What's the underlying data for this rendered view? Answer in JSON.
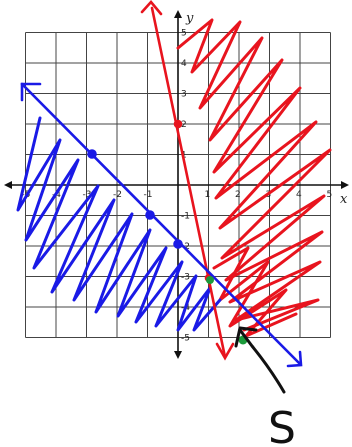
{
  "graph": {
    "axes": {
      "x_label": "x",
      "y_label": "y"
    },
    "x_ticks": [
      {
        "value": -5,
        "label": "-5"
      },
      {
        "value": -4,
        "label": "-4"
      },
      {
        "value": -3,
        "label": "-3"
      },
      {
        "value": -2,
        "label": "-2"
      },
      {
        "value": -1,
        "label": "-1"
      },
      {
        "value": 1,
        "label": "1"
      },
      {
        "value": 2,
        "label": "2"
      },
      {
        "value": 3,
        "label": "3"
      },
      {
        "value": 4,
        "label": "4"
      },
      {
        "value": 5,
        "label": "5"
      }
    ],
    "y_ticks": [
      {
        "value": 5,
        "label": "5"
      },
      {
        "value": 4,
        "label": "4"
      },
      {
        "value": 3,
        "label": "3"
      },
      {
        "value": 2,
        "label": "2"
      },
      {
        "value": 1,
        "label": "1"
      },
      {
        "value": -1,
        "label": "-1"
      },
      {
        "value": -2,
        "label": "-2"
      },
      {
        "value": -3,
        "label": "-3"
      },
      {
        "value": -4,
        "label": "-4"
      },
      {
        "value": -5,
        "label": "-5"
      }
    ],
    "grid_range": {
      "x": [
        -5,
        5
      ],
      "y": [
        -5,
        5
      ]
    }
  },
  "colors": {
    "blue": "#1a1ae6",
    "red": "#e8141e",
    "green": "#1a9a3a",
    "ink": "#111111",
    "grid": "#444444"
  },
  "annotation": {
    "solution_label": "S"
  }
}
